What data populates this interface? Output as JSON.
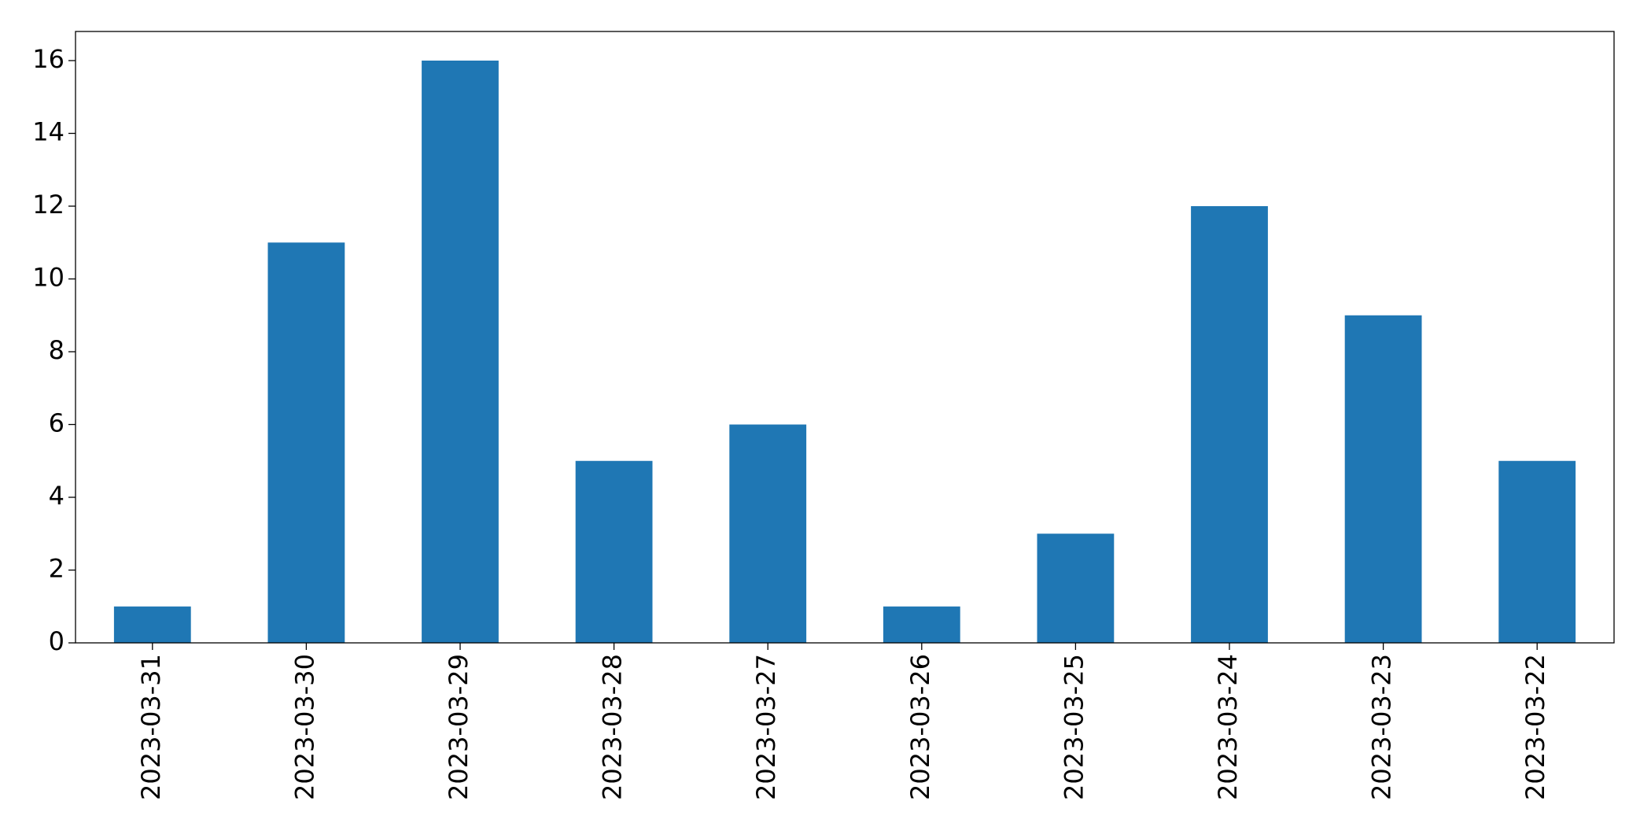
{
  "chart_data": {
    "type": "bar",
    "categories": [
      "2023-03-31",
      "2023-03-30",
      "2023-03-29",
      "2023-03-28",
      "2023-03-27",
      "2023-03-26",
      "2023-03-25",
      "2023-03-24",
      "2023-03-23",
      "2023-03-22"
    ],
    "values": [
      1,
      11,
      16,
      5,
      6,
      1,
      3,
      12,
      9,
      5
    ],
    "color": "#1f77b4",
    "ylim": [
      0,
      16.8
    ],
    "yticks": [
      0,
      2,
      4,
      6,
      8,
      10,
      12,
      14,
      16
    ],
    "grid": false
  }
}
